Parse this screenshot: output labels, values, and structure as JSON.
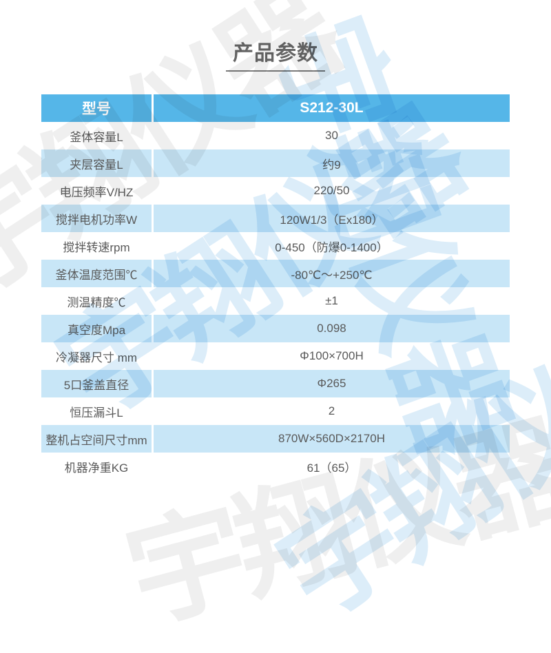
{
  "title": {
    "text": "产品参数"
  },
  "watermark": {
    "text": "宇翔仪器"
  },
  "colors": {
    "header_bg": "#55b6e8",
    "row_alt_bg": "#c8e6f7",
    "header_text": "#ffffff",
    "body_text": "#595959",
    "title_text": "#666666",
    "watermark_blue": "#dcedf9",
    "watermark_gray": "#efefef"
  },
  "table": {
    "header": {
      "label": "型号",
      "value": "S212-30L"
    },
    "rows": [
      {
        "label": "釜体容量L",
        "value": "30"
      },
      {
        "label": "夹层容量L",
        "value": "约9"
      },
      {
        "label": "电压频率V/HZ",
        "value": "220/50"
      },
      {
        "label": "搅拌电机功率W",
        "value": "120W1/3（Ex180）"
      },
      {
        "label": "搅拌转速rpm",
        "value": "0-450（防爆0-1400）"
      },
      {
        "label": "釜体温度范围℃",
        "value": "-80℃～+250℃"
      },
      {
        "label": "测温精度℃",
        "value": "±1"
      },
      {
        "label": "真空度Mpa",
        "value": "0.098"
      },
      {
        "label": "冷凝器尺寸 mm",
        "value": "Φ100×700H"
      },
      {
        "label": "5口釜盖直径",
        "value": "Φ265"
      },
      {
        "label": "恒压漏斗L",
        "value": "2"
      },
      {
        "label": "整机占空间尺寸mm",
        "value": "870W×560D×2170H"
      },
      {
        "label": "机器净重KG",
        "value": "61（65）"
      }
    ]
  }
}
